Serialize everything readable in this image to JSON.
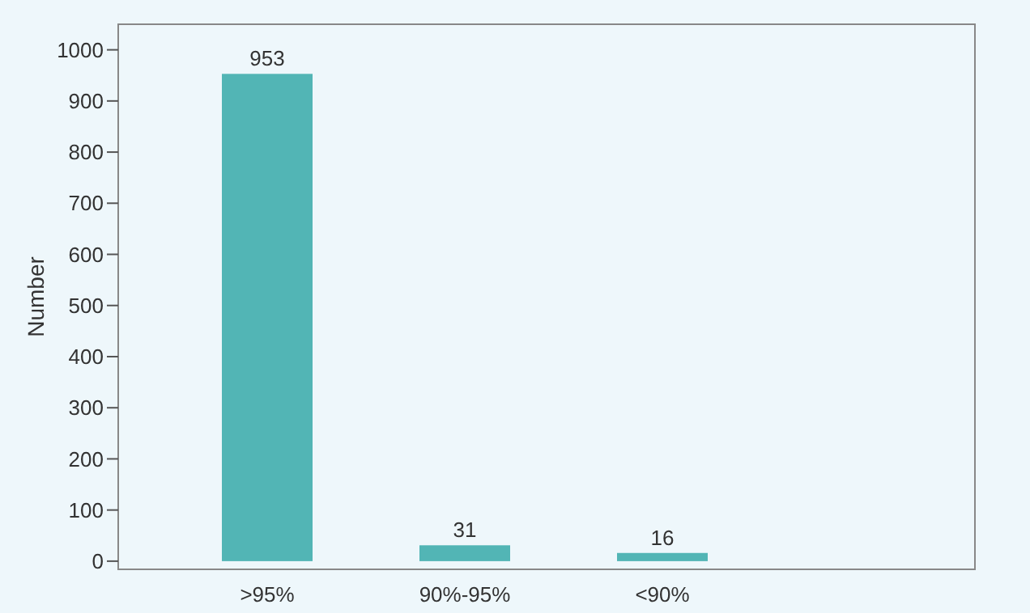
{
  "chart_data": {
    "type": "bar",
    "ylabel": "Number",
    "categories": [
      ">95%",
      "90%-95%",
      "<90%"
    ],
    "values": [
      953,
      31,
      16
    ],
    "color": "#52b5b5",
    "ylim": [
      -16,
      1050
    ],
    "yticks": [
      0,
      100,
      200,
      300,
      400,
      500,
      600,
      700,
      800,
      900,
      1000
    ],
    "data_labels": true,
    "grid": false
  }
}
